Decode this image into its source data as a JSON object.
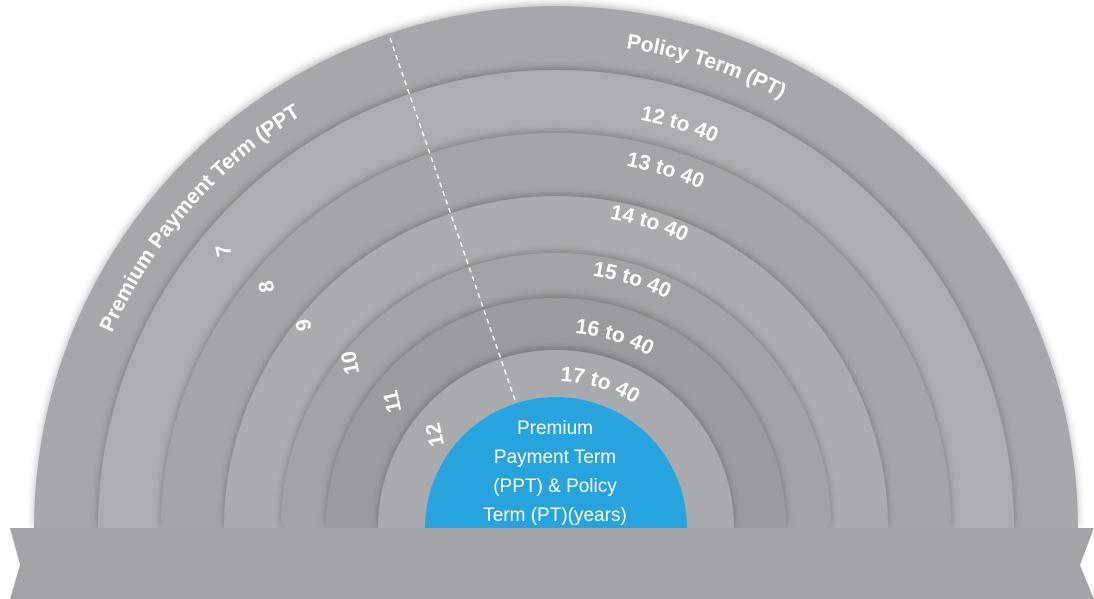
{
  "header": {
    "ppt_label": "Premium Payment Term (PPT",
    "pt_label": "Policy Term (PT)"
  },
  "rings": [
    {
      "ppt": "7",
      "pt": "12 to 40"
    },
    {
      "ppt": "8",
      "pt": "13 to 40"
    },
    {
      "ppt": "9",
      "pt": "14 to 40"
    },
    {
      "ppt": "10",
      "pt": "15 to 40"
    },
    {
      "ppt": "11",
      "pt": "16 to 40"
    },
    {
      "ppt": "12",
      "pt": "17 to 40"
    }
  ],
  "center": {
    "lines": [
      "Premium",
      "Payment Term",
      "(PPT) & Policy",
      "Term (PT)(years)"
    ]
  }
}
